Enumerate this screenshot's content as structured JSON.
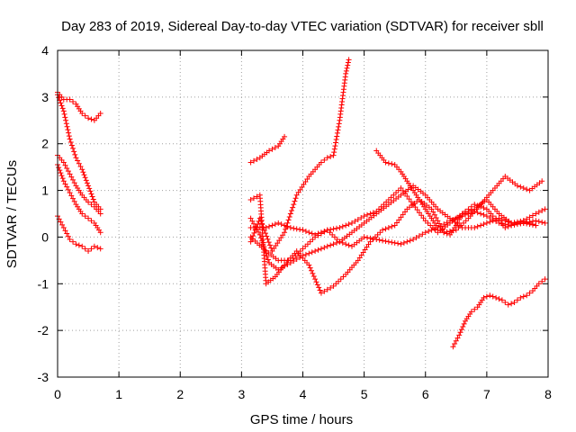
{
  "chart_data": {
    "type": "scatter",
    "title": "Day 283 of 2019, Sidereal Day-to-day VTEC variation (SDTVAR) for receiver sbll",
    "xlabel": "GPS time / hours",
    "ylabel": "SDTVAR / TECUs",
    "xlim": [
      0,
      8
    ],
    "ylim": [
      -3,
      4
    ],
    "x_ticks": [
      "0",
      "1",
      "2",
      "3",
      "4",
      "5",
      "6",
      "7",
      "8"
    ],
    "y_ticks": [
      "-3",
      "-2",
      "-1",
      "0",
      "1",
      "2",
      "3",
      "4"
    ],
    "grid": true,
    "marker": "+",
    "color": "#ff0000",
    "series": [
      {
        "name": "track-1",
        "points": [
          [
            0.0,
            3.1
          ],
          [
            0.1,
            2.95
          ],
          [
            0.2,
            2.95
          ],
          [
            0.3,
            2.85
          ],
          [
            0.4,
            2.65
          ],
          [
            0.5,
            2.55
          ],
          [
            0.6,
            2.5
          ],
          [
            0.7,
            2.65
          ]
        ]
      },
      {
        "name": "track-2",
        "points": [
          [
            0.0,
            3.05
          ],
          [
            0.1,
            2.7
          ],
          [
            0.2,
            2.1
          ],
          [
            0.3,
            1.7
          ],
          [
            0.4,
            1.45
          ],
          [
            0.5,
            1.1
          ],
          [
            0.6,
            0.75
          ],
          [
            0.7,
            0.6
          ]
        ]
      },
      {
        "name": "track-3",
        "points": [
          [
            0.0,
            1.75
          ],
          [
            0.1,
            1.6
          ],
          [
            0.2,
            1.35
          ],
          [
            0.3,
            1.1
          ],
          [
            0.4,
            0.9
          ],
          [
            0.5,
            0.75
          ],
          [
            0.6,
            0.65
          ],
          [
            0.7,
            0.5
          ]
        ]
      },
      {
        "name": "track-4",
        "points": [
          [
            0.0,
            1.55
          ],
          [
            0.1,
            1.2
          ],
          [
            0.2,
            0.95
          ],
          [
            0.3,
            0.7
          ],
          [
            0.4,
            0.5
          ],
          [
            0.5,
            0.4
          ],
          [
            0.6,
            0.3
          ],
          [
            0.7,
            0.1
          ]
        ]
      },
      {
        "name": "track-5",
        "points": [
          [
            0.0,
            0.45
          ],
          [
            0.1,
            0.2
          ],
          [
            0.2,
            -0.05
          ],
          [
            0.3,
            -0.15
          ],
          [
            0.4,
            -0.2
          ],
          [
            0.5,
            -0.3
          ],
          [
            0.6,
            -0.2
          ],
          [
            0.7,
            -0.25
          ]
        ]
      },
      {
        "name": "track-6",
        "points": [
          [
            3.15,
            1.6
          ],
          [
            3.3,
            1.7
          ],
          [
            3.45,
            1.85
          ],
          [
            3.6,
            1.95
          ],
          [
            3.7,
            2.15
          ]
        ]
      },
      {
        "name": "track-7",
        "points": [
          [
            3.15,
            0.4
          ],
          [
            3.3,
            0.05
          ],
          [
            3.45,
            -0.55
          ],
          [
            3.6,
            -0.7
          ],
          [
            3.8,
            -0.55
          ],
          [
            4.0,
            -0.4
          ],
          [
            4.2,
            -0.3
          ],
          [
            4.4,
            -0.2
          ],
          [
            4.6,
            -0.1
          ],
          [
            4.8,
            0.1
          ],
          [
            5.0,
            0.3
          ],
          [
            5.2,
            0.5
          ],
          [
            5.4,
            0.7
          ],
          [
            5.6,
            0.9
          ],
          [
            5.8,
            1.1
          ],
          [
            6.0,
            0.9
          ],
          [
            6.2,
            0.6
          ],
          [
            6.4,
            0.4
          ],
          [
            6.6,
            0.2
          ],
          [
            6.8,
            0.2
          ],
          [
            7.0,
            0.3
          ],
          [
            7.2,
            0.4
          ],
          [
            7.4,
            0.3
          ],
          [
            7.6,
            0.3
          ],
          [
            7.8,
            0.25
          ]
        ]
      },
      {
        "name": "track-8",
        "points": [
          [
            3.15,
            -0.1
          ],
          [
            3.3,
            0.4
          ],
          [
            3.5,
            -0.3
          ],
          [
            3.7,
            0.1
          ],
          [
            3.9,
            0.9
          ],
          [
            4.1,
            1.3
          ],
          [
            4.3,
            1.6
          ],
          [
            4.4,
            1.7
          ],
          [
            4.5,
            1.75
          ],
          [
            4.6,
            2.5
          ],
          [
            4.7,
            3.5
          ],
          [
            4.75,
            3.8
          ]
        ]
      },
      {
        "name": "track-9",
        "points": [
          [
            3.15,
            0.8
          ],
          [
            3.3,
            0.9
          ],
          [
            3.4,
            -1.0
          ],
          [
            3.55,
            -0.85
          ],
          [
            3.7,
            -0.6
          ],
          [
            3.9,
            -0.3
          ],
          [
            4.1,
            -0.6
          ],
          [
            4.3,
            -1.2
          ],
          [
            4.5,
            -1.05
          ],
          [
            4.7,
            -0.8
          ],
          [
            4.9,
            -0.5
          ],
          [
            5.1,
            -0.1
          ],
          [
            5.3,
            0.15
          ],
          [
            5.5,
            0.25
          ],
          [
            5.7,
            0.6
          ],
          [
            5.9,
            0.8
          ],
          [
            6.1,
            0.6
          ],
          [
            6.3,
            0.1
          ],
          [
            6.5,
            0.15
          ],
          [
            6.7,
            0.4
          ],
          [
            6.9,
            0.7
          ],
          [
            7.1,
            1.0
          ],
          [
            7.3,
            1.3
          ],
          [
            7.5,
            1.1
          ],
          [
            7.7,
            1.0
          ],
          [
            7.9,
            1.2
          ]
        ]
      },
      {
        "name": "track-10",
        "points": [
          [
            3.15,
            0.0
          ],
          [
            3.4,
            -0.3
          ],
          [
            3.6,
            -0.5
          ],
          [
            3.8,
            -0.5
          ],
          [
            4.0,
            -0.25
          ],
          [
            4.2,
            0.0
          ],
          [
            4.4,
            0.15
          ],
          [
            4.6,
            0.2
          ],
          [
            4.8,
            0.3
          ],
          [
            5.0,
            0.45
          ],
          [
            5.2,
            0.55
          ],
          [
            5.4,
            0.8
          ],
          [
            5.6,
            1.05
          ],
          [
            5.8,
            0.7
          ],
          [
            6.0,
            0.35
          ],
          [
            6.2,
            0.1
          ],
          [
            6.4,
            0.3
          ],
          [
            6.6,
            0.5
          ],
          [
            6.8,
            0.6
          ],
          [
            7.0,
            0.8
          ],
          [
            7.2,
            0.5
          ],
          [
            7.4,
            0.3
          ],
          [
            7.6,
            0.35
          ],
          [
            7.8,
            0.5
          ],
          [
            7.95,
            0.6
          ]
        ]
      },
      {
        "name": "track-11",
        "points": [
          [
            3.15,
            0.2
          ],
          [
            3.4,
            0.2
          ],
          [
            3.6,
            0.3
          ],
          [
            3.8,
            0.2
          ],
          [
            4.0,
            0.15
          ],
          [
            4.2,
            0.05
          ],
          [
            4.4,
            0.15
          ],
          [
            4.6,
            -0.1
          ],
          [
            4.8,
            -0.2
          ],
          [
            5.0,
            0.0
          ],
          [
            5.2,
            -0.05
          ],
          [
            5.4,
            -0.1
          ],
          [
            5.6,
            -0.15
          ],
          [
            5.8,
            -0.05
          ],
          [
            6.0,
            0.1
          ],
          [
            6.2,
            0.2
          ],
          [
            6.4,
            0.35
          ],
          [
            6.6,
            0.45
          ],
          [
            6.8,
            0.55
          ],
          [
            7.0,
            0.45
          ],
          [
            7.2,
            0.3
          ],
          [
            7.4,
            0.25
          ],
          [
            7.6,
            0.3
          ],
          [
            7.8,
            0.35
          ],
          [
            7.95,
            0.3
          ]
        ]
      },
      {
        "name": "track-12",
        "points": [
          [
            5.2,
            1.85
          ],
          [
            5.35,
            1.6
          ],
          [
            5.5,
            1.55
          ],
          [
            5.6,
            1.4
          ],
          [
            5.7,
            1.2
          ],
          [
            5.8,
            1.0
          ],
          [
            5.9,
            0.8
          ],
          [
            6.0,
            0.6
          ],
          [
            6.1,
            0.4
          ],
          [
            6.2,
            0.2
          ],
          [
            6.3,
            0.1
          ],
          [
            6.4,
            0.05
          ],
          [
            6.5,
            0.25
          ],
          [
            6.6,
            0.5
          ],
          [
            6.7,
            0.6
          ],
          [
            6.8,
            0.7
          ],
          [
            6.9,
            0.65
          ],
          [
            7.0,
            0.6
          ],
          [
            7.1,
            0.45
          ],
          [
            7.2,
            0.35
          ],
          [
            7.3,
            0.2
          ],
          [
            7.4,
            0.25
          ],
          [
            7.5,
            0.3
          ],
          [
            7.6,
            0.35
          ],
          [
            7.7,
            0.3
          ],
          [
            7.8,
            0.25
          ]
        ]
      },
      {
        "name": "track-13",
        "points": [
          [
            6.45,
            -2.35
          ],
          [
            6.55,
            -2.1
          ],
          [
            6.65,
            -1.8
          ],
          [
            6.75,
            -1.6
          ],
          [
            6.85,
            -1.5
          ],
          [
            6.95,
            -1.3
          ],
          [
            7.05,
            -1.25
          ],
          [
            7.15,
            -1.3
          ],
          [
            7.25,
            -1.35
          ],
          [
            7.35,
            -1.45
          ],
          [
            7.45,
            -1.4
          ],
          [
            7.55,
            -1.3
          ],
          [
            7.65,
            -1.25
          ],
          [
            7.75,
            -1.15
          ],
          [
            7.85,
            -1.0
          ],
          [
            7.95,
            -0.9
          ]
        ]
      }
    ]
  }
}
